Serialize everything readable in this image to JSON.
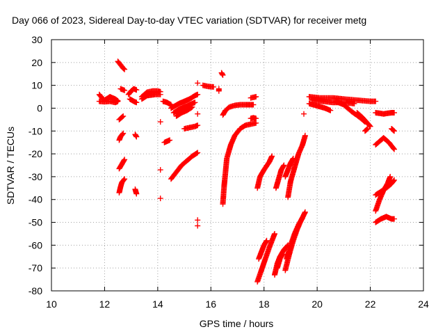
{
  "chart_data": {
    "type": "scatter",
    "title": "Day 066 of 2023, Sidereal Day-to-day VTEC variation (SDTVAR) for receiver metg",
    "xlabel": "GPS time / hours",
    "ylabel": "SDTVAR / TECUs",
    "xlim": [
      10,
      24
    ],
    "ylim": [
      -80,
      30
    ],
    "xticks": [
      10,
      12,
      14,
      16,
      18,
      20,
      22,
      24
    ],
    "yticks": [
      30,
      20,
      10,
      0,
      -10,
      -20,
      -30,
      -40,
      -50,
      -60,
      -70,
      -80
    ],
    "grid": true,
    "marker": "plus",
    "color": "#ff0000",
    "series": [
      {
        "points": [
          [
            11.8,
            6
          ],
          [
            11.9,
            4.5
          ],
          [
            12.0,
            3.5
          ],
          [
            12.2,
            5
          ],
          [
            12.4,
            4
          ],
          [
            12.5,
            3.2
          ]
        ]
      },
      {
        "points": [
          [
            11.8,
            3
          ],
          [
            12.0,
            2.8
          ],
          [
            12.2,
            3
          ],
          [
            12.4,
            2.5
          ],
          [
            12.5,
            3
          ]
        ]
      },
      {
        "points": [
          [
            12.5,
            20.5
          ],
          [
            12.6,
            19
          ],
          [
            12.7,
            17.5
          ],
          [
            12.75,
            17
          ]
        ]
      },
      {
        "points": [
          [
            12.6,
            8.5
          ],
          [
            12.75,
            7.8
          ]
        ]
      },
      {
        "points": [
          [
            12.55,
            -5
          ],
          [
            12.7,
            -3.5
          ]
        ]
      },
      {
        "points": [
          [
            12.55,
            -14
          ],
          [
            12.6,
            -12.5
          ],
          [
            12.7,
            -11
          ]
        ]
      },
      {
        "points": [
          [
            12.55,
            -26.5
          ],
          [
            12.65,
            -24.5
          ],
          [
            12.75,
            -22.5
          ]
        ]
      },
      {
        "points": [
          [
            12.55,
            -37
          ],
          [
            12.6,
            -34.5
          ],
          [
            12.65,
            -32.5
          ],
          [
            12.75,
            -31
          ]
        ]
      },
      {
        "points": [
          [
            12.9,
            6
          ],
          [
            13.0,
            7.5
          ],
          [
            13.1,
            8.5
          ],
          [
            13.2,
            8
          ]
        ]
      },
      {
        "points": [
          [
            12.95,
            4
          ],
          [
            13.1,
            3
          ],
          [
            13.2,
            2.5
          ]
        ]
      },
      {
        "points": [
          [
            13.15,
            -11.5
          ],
          [
            13.2,
            -12.5
          ]
        ]
      },
      {
        "points": [
          [
            13.15,
            -35.5
          ],
          [
            13.2,
            -37.5
          ]
        ]
      },
      {
        "points": [
          [
            13.4,
            5
          ],
          [
            13.6,
            7
          ],
          [
            13.8,
            7.5
          ],
          [
            14.0,
            7.5
          ],
          [
            14.1,
            7.2
          ]
        ]
      },
      {
        "points": [
          [
            13.4,
            4
          ],
          [
            13.6,
            5.5
          ],
          [
            13.9,
            6
          ],
          [
            14.1,
            6
          ]
        ]
      },
      {
        "points": [
          [
            14.1,
            -6
          ]
        ]
      },
      {
        "points": [
          [
            14.1,
            -27
          ]
        ]
      },
      {
        "points": [
          [
            14.1,
            -39.5
          ]
        ]
      },
      {
        "points": [
          [
            14.2,
            3
          ],
          [
            14.35,
            2.5
          ],
          [
            14.5,
            1.5
          ]
        ]
      },
      {
        "points": [
          [
            14.25,
            -15
          ],
          [
            14.35,
            -14.5
          ],
          [
            14.45,
            -14
          ]
        ]
      },
      {
        "points": [
          [
            14.5,
            -31
          ],
          [
            14.7,
            -28
          ],
          [
            14.9,
            -25
          ],
          [
            15.1,
            -23
          ],
          [
            15.3,
            -21
          ],
          [
            15.5,
            -19.5
          ]
        ]
      },
      {
        "points": [
          [
            14.5,
            0
          ],
          [
            14.8,
            2
          ],
          [
            15.0,
            3
          ],
          [
            15.2,
            4
          ],
          [
            15.4,
            5.5
          ],
          [
            15.5,
            6
          ]
        ]
      },
      {
        "points": [
          [
            14.6,
            -2
          ],
          [
            14.8,
            -0.5
          ],
          [
            15.0,
            0.5
          ],
          [
            15.2,
            1.5
          ],
          [
            15.4,
            2.5
          ]
        ]
      },
      {
        "points": [
          [
            14.7,
            -3.5
          ],
          [
            14.9,
            -2
          ],
          [
            15.1,
            -1
          ],
          [
            15.3,
            0.5
          ]
        ]
      },
      {
        "points": [
          [
            15.0,
            -9
          ],
          [
            15.2,
            -8.5
          ],
          [
            15.4,
            -8
          ],
          [
            15.5,
            -7.5
          ]
        ]
      },
      {
        "points": [
          [
            15.5,
            -2.5
          ]
        ]
      },
      {
        "points": [
          [
            15.5,
            11
          ]
        ]
      },
      {
        "points": [
          [
            15.5,
            -49
          ]
        ]
      },
      {
        "points": [
          [
            15.5,
            -51.5
          ]
        ]
      },
      {
        "points": [
          [
            15.7,
            10
          ],
          [
            15.9,
            9.5
          ],
          [
            16.1,
            9.3
          ]
        ]
      },
      {
        "points": [
          [
            16.3,
            8.5
          ],
          [
            16.3,
            7.5
          ]
        ]
      },
      {
        "points": [
          [
            16.4,
            15.5
          ],
          [
            16.45,
            14.5
          ]
        ]
      },
      {
        "points": [
          [
            16.45,
            -42
          ],
          [
            16.5,
            -34
          ],
          [
            16.55,
            -28
          ],
          [
            16.6,
            -22
          ],
          [
            16.75,
            -16
          ],
          [
            16.9,
            -12
          ],
          [
            17.1,
            -9
          ],
          [
            17.3,
            -7.5
          ],
          [
            17.5,
            -7
          ],
          [
            17.7,
            -6.5
          ]
        ]
      },
      {
        "points": [
          [
            16.45,
            -3
          ],
          [
            16.55,
            -1
          ],
          [
            16.7,
            0.5
          ],
          [
            16.9,
            1.2
          ],
          [
            17.1,
            1.5
          ],
          [
            17.3,
            1.5
          ],
          [
            17.6,
            1.5
          ]
        ]
      },
      {
        "points": [
          [
            17.5,
            -4.5
          ],
          [
            17.6,
            -4.2
          ],
          [
            17.7,
            -4.5
          ]
        ]
      },
      {
        "points": [
          [
            17.5,
            4.5
          ],
          [
            17.7,
            5
          ]
        ]
      },
      {
        "points": [
          [
            17.75,
            -35
          ],
          [
            17.85,
            -30
          ],
          [
            18.0,
            -27
          ],
          [
            18.2,
            -23.5
          ],
          [
            18.3,
            -21
          ]
        ]
      },
      {
        "points": [
          [
            17.75,
            -76
          ],
          [
            17.9,
            -71
          ],
          [
            18.05,
            -66
          ],
          [
            18.2,
            -61
          ],
          [
            18.35,
            -56.5
          ],
          [
            18.4,
            -55
          ]
        ]
      },
      {
        "points": [
          [
            17.8,
            -66
          ],
          [
            17.9,
            -63
          ],
          [
            18.0,
            -60
          ],
          [
            18.1,
            -58
          ]
        ]
      },
      {
        "points": [
          [
            18.45,
            -35
          ],
          [
            18.55,
            -31
          ],
          [
            18.65,
            -27
          ],
          [
            18.75,
            -25
          ]
        ]
      },
      {
        "points": [
          [
            18.4,
            -73
          ],
          [
            18.5,
            -68
          ],
          [
            18.6,
            -65
          ],
          [
            18.75,
            -62
          ],
          [
            18.9,
            -60
          ]
        ]
      },
      {
        "points": [
          [
            18.5,
            -70
          ],
          [
            18.6,
            -66
          ],
          [
            18.7,
            -64
          ]
        ]
      },
      {
        "points": [
          [
            18.8,
            -30
          ],
          [
            18.9,
            -27
          ],
          [
            19.0,
            -24
          ],
          [
            19.1,
            -22
          ]
        ]
      },
      {
        "points": [
          [
            18.8,
            -71
          ],
          [
            18.95,
            -64
          ],
          [
            19.1,
            -58
          ],
          [
            19.25,
            -53
          ],
          [
            19.4,
            -49
          ],
          [
            19.55,
            -45.5
          ]
        ]
      },
      {
        "points": [
          [
            18.85,
            -66
          ],
          [
            19.0,
            -60
          ],
          [
            19.15,
            -55
          ],
          [
            19.3,
            -51
          ],
          [
            19.45,
            -48
          ]
        ]
      },
      {
        "points": [
          [
            18.9,
            -39
          ],
          [
            19.0,
            -32
          ],
          [
            19.1,
            -28
          ],
          [
            19.2,
            -24
          ],
          [
            19.3,
            -20
          ],
          [
            19.45,
            -16
          ],
          [
            19.55,
            -12
          ]
        ]
      },
      {
        "points": [
          [
            19.5,
            -2.5
          ]
        ]
      },
      {
        "points": [
          [
            19.7,
            5
          ],
          [
            20.1,
            4.5
          ],
          [
            20.6,
            4.5
          ],
          [
            21.0,
            4
          ],
          [
            21.5,
            3.5
          ],
          [
            22.0,
            3
          ],
          [
            22.2,
            3
          ]
        ]
      },
      {
        "points": [
          [
            19.7,
            2
          ],
          [
            20.0,
            1
          ],
          [
            20.3,
            0
          ],
          [
            20.5,
            -1
          ]
        ]
      },
      {
        "points": [
          [
            19.8,
            3.5
          ],
          [
            20.2,
            3
          ],
          [
            20.6,
            2.5
          ],
          [
            21.0,
            2.5
          ],
          [
            21.4,
            2
          ]
        ]
      },
      {
        "points": [
          [
            20.7,
            3
          ],
          [
            21.0,
            1.5
          ],
          [
            21.3,
            -1.5
          ],
          [
            21.6,
            -4
          ],
          [
            21.8,
            -6
          ]
        ]
      },
      {
        "points": [
          [
            21.5,
            -2
          ],
          [
            21.7,
            -4
          ],
          [
            21.85,
            -6
          ],
          [
            22.0,
            -8
          ]
        ]
      },
      {
        "points": [
          [
            21.8,
            -10
          ],
          [
            21.9,
            -9
          ]
        ]
      },
      {
        "points": [
          [
            22.2,
            -2
          ],
          [
            22.5,
            -2.5
          ],
          [
            22.8,
            -2
          ],
          [
            22.9,
            -2
          ]
        ]
      },
      {
        "points": [
          [
            22.2,
            -16
          ],
          [
            22.4,
            -14
          ],
          [
            22.5,
            -13
          ]
        ]
      },
      {
        "points": [
          [
            22.5,
            -13
          ],
          [
            22.7,
            -15
          ],
          [
            22.9,
            -18
          ]
        ]
      },
      {
        "points": [
          [
            22.8,
            -9
          ],
          [
            22.9,
            -10
          ]
        ]
      },
      {
        "points": [
          [
            22.2,
            -38
          ],
          [
            22.4,
            -36.5
          ],
          [
            22.6,
            -35
          ],
          [
            22.8,
            -33
          ],
          [
            22.9,
            -31.5
          ]
        ]
      },
      {
        "points": [
          [
            22.2,
            -45
          ],
          [
            22.35,
            -40
          ],
          [
            22.5,
            -36
          ],
          [
            22.65,
            -33
          ],
          [
            22.75,
            -30
          ]
        ]
      },
      {
        "points": [
          [
            22.2,
            -50
          ],
          [
            22.4,
            -48.5
          ],
          [
            22.6,
            -47.5
          ],
          [
            22.8,
            -48.5
          ],
          [
            22.9,
            -48.5
          ]
        ]
      }
    ]
  }
}
